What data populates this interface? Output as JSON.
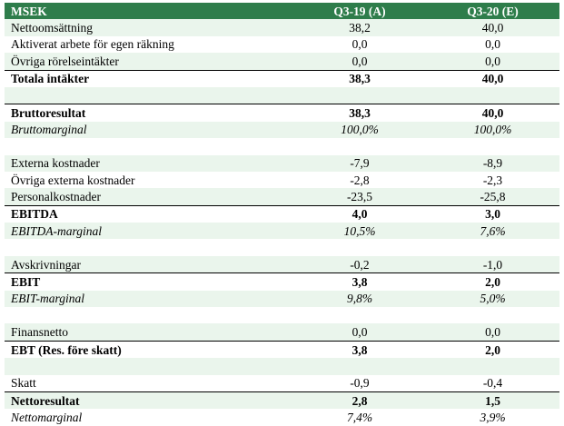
{
  "table": {
    "header": [
      "MSEK",
      "Q3-19 (A)",
      "Q3-20 (E)"
    ],
    "rows": [
      {
        "label": "Nettoomsättning",
        "a": "38,2",
        "e": "40,0",
        "style": ""
      },
      {
        "label": "Aktiverat arbete för egen räkning",
        "a": "0,0",
        "e": "0,0",
        "style": ""
      },
      {
        "label": "Övriga rörelseintäkter",
        "a": "0,0",
        "e": "0,0",
        "style": ""
      },
      {
        "label": "Totala intäkter",
        "a": "38,3",
        "e": "40,0",
        "style": "bold"
      },
      {
        "label": "",
        "a": "",
        "e": "",
        "style": "blank"
      },
      {
        "label": "Bruttoresultat",
        "a": "38,3",
        "e": "40,0",
        "style": "bold"
      },
      {
        "label": "Bruttomarginal",
        "a": "100,0%",
        "e": "100,0%",
        "style": "italic"
      },
      {
        "label": "",
        "a": "",
        "e": "",
        "style": "blank"
      },
      {
        "label": "Externa kostnader",
        "a": "-7,9",
        "e": "-8,9",
        "style": ""
      },
      {
        "label": "Övriga externa kostnader",
        "a": "-2,8",
        "e": "-2,3",
        "style": ""
      },
      {
        "label": "Personalkostnader",
        "a": "-23,5",
        "e": "-25,8",
        "style": ""
      },
      {
        "label": "EBITDA",
        "a": "4,0",
        "e": "3,0",
        "style": "bold"
      },
      {
        "label": "EBITDA-marginal",
        "a": "10,5%",
        "e": "7,6%",
        "style": "italic"
      },
      {
        "label": "",
        "a": "",
        "e": "",
        "style": "blank"
      },
      {
        "label": "Avskrivningar",
        "a": "-0,2",
        "e": "-1,0",
        "style": ""
      },
      {
        "label": "EBIT",
        "a": "3,8",
        "e": "2,0",
        "style": "bold"
      },
      {
        "label": "EBIT-marginal",
        "a": "9,8%",
        "e": "5,0%",
        "style": "italic"
      },
      {
        "label": "",
        "a": "",
        "e": "",
        "style": "blank"
      },
      {
        "label": "Finansnetto",
        "a": "0,0",
        "e": "0,0",
        "style": ""
      },
      {
        "label": "EBT (Res. före skatt)",
        "a": "3,8",
        "e": "2,0",
        "style": "bold"
      },
      {
        "label": "",
        "a": "",
        "e": "",
        "style": "blank"
      },
      {
        "label": "Skatt",
        "a": "-0,9",
        "e": "-0,4",
        "style": ""
      },
      {
        "label": "Nettoresultat",
        "a": "2,8",
        "e": "1,5",
        "style": "bold"
      },
      {
        "label": "Nettomarginal",
        "a": "7,4%",
        "e": "3,9%",
        "style": "italic"
      }
    ]
  },
  "colors": {
    "header_background": "#2e7d4b",
    "header_text": "#ffffff",
    "row_shade": "#eaf5ec",
    "rule_line": "#000000"
  }
}
